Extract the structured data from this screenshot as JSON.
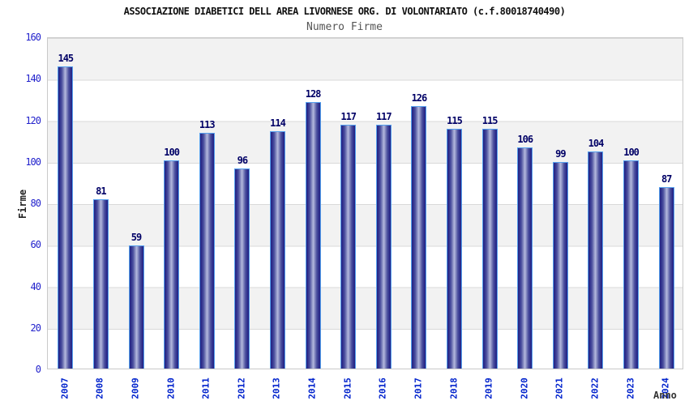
{
  "chart_data": {
    "type": "bar",
    "title": "ASSOCIAZIONE DIABETICI DELL AREA LIVORNESE ORG. DI VOLONTARIATO (c.f.80018740490)",
    "subtitle": "Numero Firme",
    "xlabel": "Anno",
    "ylabel": "Firme",
    "categories": [
      "2007",
      "2008",
      "2009",
      "2010",
      "2011",
      "2012",
      "2013",
      "2014",
      "2015",
      "2016",
      "2017",
      "2018",
      "2019",
      "2020",
      "2021",
      "2022",
      "2023",
      "2024"
    ],
    "values": [
      145,
      81,
      59,
      100,
      113,
      96,
      114,
      128,
      117,
      117,
      126,
      115,
      115,
      106,
      99,
      104,
      100,
      87
    ],
    "ylim": [
      0,
      160
    ],
    "yticks": [
      0,
      20,
      40,
      60,
      80,
      100,
      120,
      140,
      160
    ],
    "grid": "horizontal",
    "legend": "none",
    "colors": {
      "bar_edge": "#55a0ee",
      "bar_dark": "#232383",
      "bar_light": "#b4b9de",
      "value_label": "#000066",
      "axis_tick_label": "#2222cc",
      "band_gray": "#f2f2f2",
      "band_white": "#ffffff",
      "gridline": "#d9d9d9",
      "title_color": "#111111",
      "subtitle_color": "#555555"
    }
  }
}
